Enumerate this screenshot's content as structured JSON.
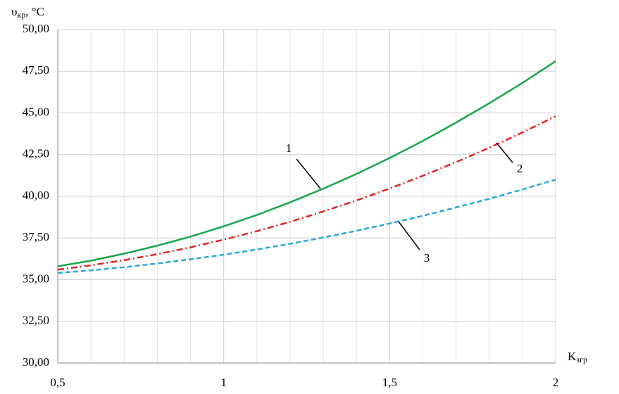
{
  "chart_data": {
    "type": "line",
    "ylabel": {
      "symbol": "υ",
      "sub": "кр",
      "unit": ", °C"
    },
    "xlabel": {
      "symbol": "K",
      "sub": "згр"
    },
    "x": [
      0.5,
      0.6,
      0.7,
      0.8,
      0.9,
      1.0,
      1.1,
      1.2,
      1.3,
      1.4,
      1.5,
      1.6,
      1.7,
      1.8,
      1.9,
      2.0
    ],
    "series": [
      {
        "name": "1",
        "color": "#1aa64a",
        "dash": "solid",
        "values": [
          35.8,
          36.14,
          36.56,
          37.04,
          37.58,
          38.2,
          38.88,
          39.64,
          40.46,
          41.34,
          42.3,
          43.32,
          44.42,
          45.58,
          46.8,
          48.1
        ]
      },
      {
        "name": "2",
        "color": "#e02424",
        "dash": "dashdot",
        "values": [
          35.6,
          35.86,
          36.17,
          36.53,
          36.94,
          37.4,
          37.91,
          38.47,
          39.09,
          39.75,
          40.47,
          41.23,
          42.05,
          42.91,
          43.83,
          44.8
        ]
      },
      {
        "name": "3",
        "color": "#2aa8d8",
        "dash": "dashed",
        "values": [
          35.4,
          35.56,
          35.75,
          35.97,
          36.22,
          36.5,
          36.81,
          37.15,
          37.53,
          37.93,
          38.37,
          38.83,
          39.33,
          39.85,
          40.41,
          41.0
        ]
      }
    ],
    "xlim": [
      0.5,
      2
    ],
    "ylim": [
      30,
      50
    ],
    "xticks": [
      {
        "value": 0.5,
        "label": "0,5"
      },
      1,
      {
        "value": 1.5,
        "label": "1,5"
      },
      2
    ],
    "xminor": [
      0.6,
      0.7,
      0.8,
      0.9,
      1.1,
      1.2,
      1.3,
      1.4,
      1.6,
      1.7,
      1.8,
      1.9
    ],
    "yticks": [
      {
        "value": 30,
        "label": "30,00"
      },
      {
        "value": 32.5,
        "label": "32,50"
      },
      {
        "value": 35,
        "label": "35,00"
      },
      {
        "value": 37.5,
        "label": "37,50"
      },
      {
        "value": 40,
        "label": "40,00"
      },
      {
        "value": 42.5,
        "label": "42,50"
      },
      {
        "value": 45,
        "label": "45,00"
      },
      {
        "value": 47.5,
        "label": "47,50"
      },
      {
        "value": 50,
        "label": "50,00"
      }
    ],
    "grid": true
  }
}
